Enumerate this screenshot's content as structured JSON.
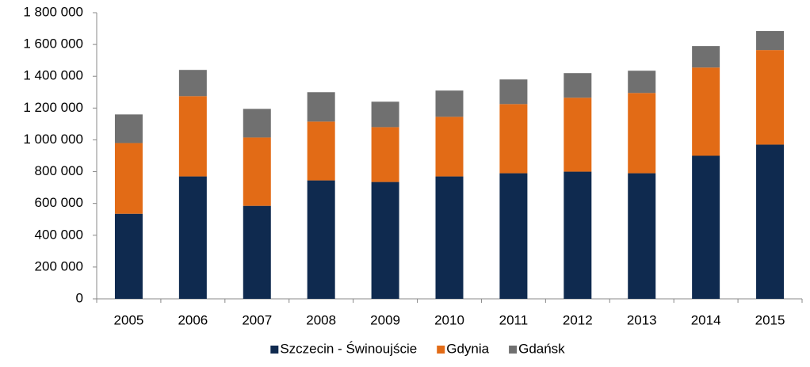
{
  "chart_data": {
    "type": "stacked_bar",
    "categories": [
      "2005",
      "2006",
      "2007",
      "2008",
      "2009",
      "2010",
      "2011",
      "2012",
      "2013",
      "2014",
      "2015"
    ],
    "series": [
      {
        "name": "Szczecin - Świnoujście",
        "color": "#0f2a4f",
        "values": [
          535000,
          770000,
          585000,
          745000,
          735000,
          770000,
          790000,
          800000,
          790000,
          900000,
          970000
        ]
      },
      {
        "name": "Gdynia",
        "color": "#e26b16",
        "values": [
          445000,
          505000,
          430000,
          370000,
          345000,
          375000,
          435000,
          465000,
          505000,
          555000,
          595000
        ]
      },
      {
        "name": "Gdańsk",
        "color": "#707070",
        "values": [
          180000,
          165000,
          180000,
          185000,
          160000,
          165000,
          155000,
          155000,
          140000,
          135000,
          120000
        ]
      }
    ],
    "ylim": [
      0,
      1800000
    ],
    "yticks": [
      0,
      {
        "value": 200000,
        "label": "200 000"
      },
      {
        "value": 400000,
        "label": "400 000"
      },
      {
        "value": 600000,
        "label": "600 000"
      },
      {
        "value": 800000,
        "label": "800 000"
      },
      {
        "value": 1000000,
        "label": "1 000 000"
      },
      {
        "value": 1200000,
        "label": "1 200 000"
      },
      {
        "value": 1400000,
        "label": "1 400 000"
      },
      {
        "value": 1600000,
        "label": "1 600 000"
      },
      {
        "value": 1800000,
        "label": "1 800 000"
      }
    ],
    "grid": false,
    "legend": "bottom"
  }
}
